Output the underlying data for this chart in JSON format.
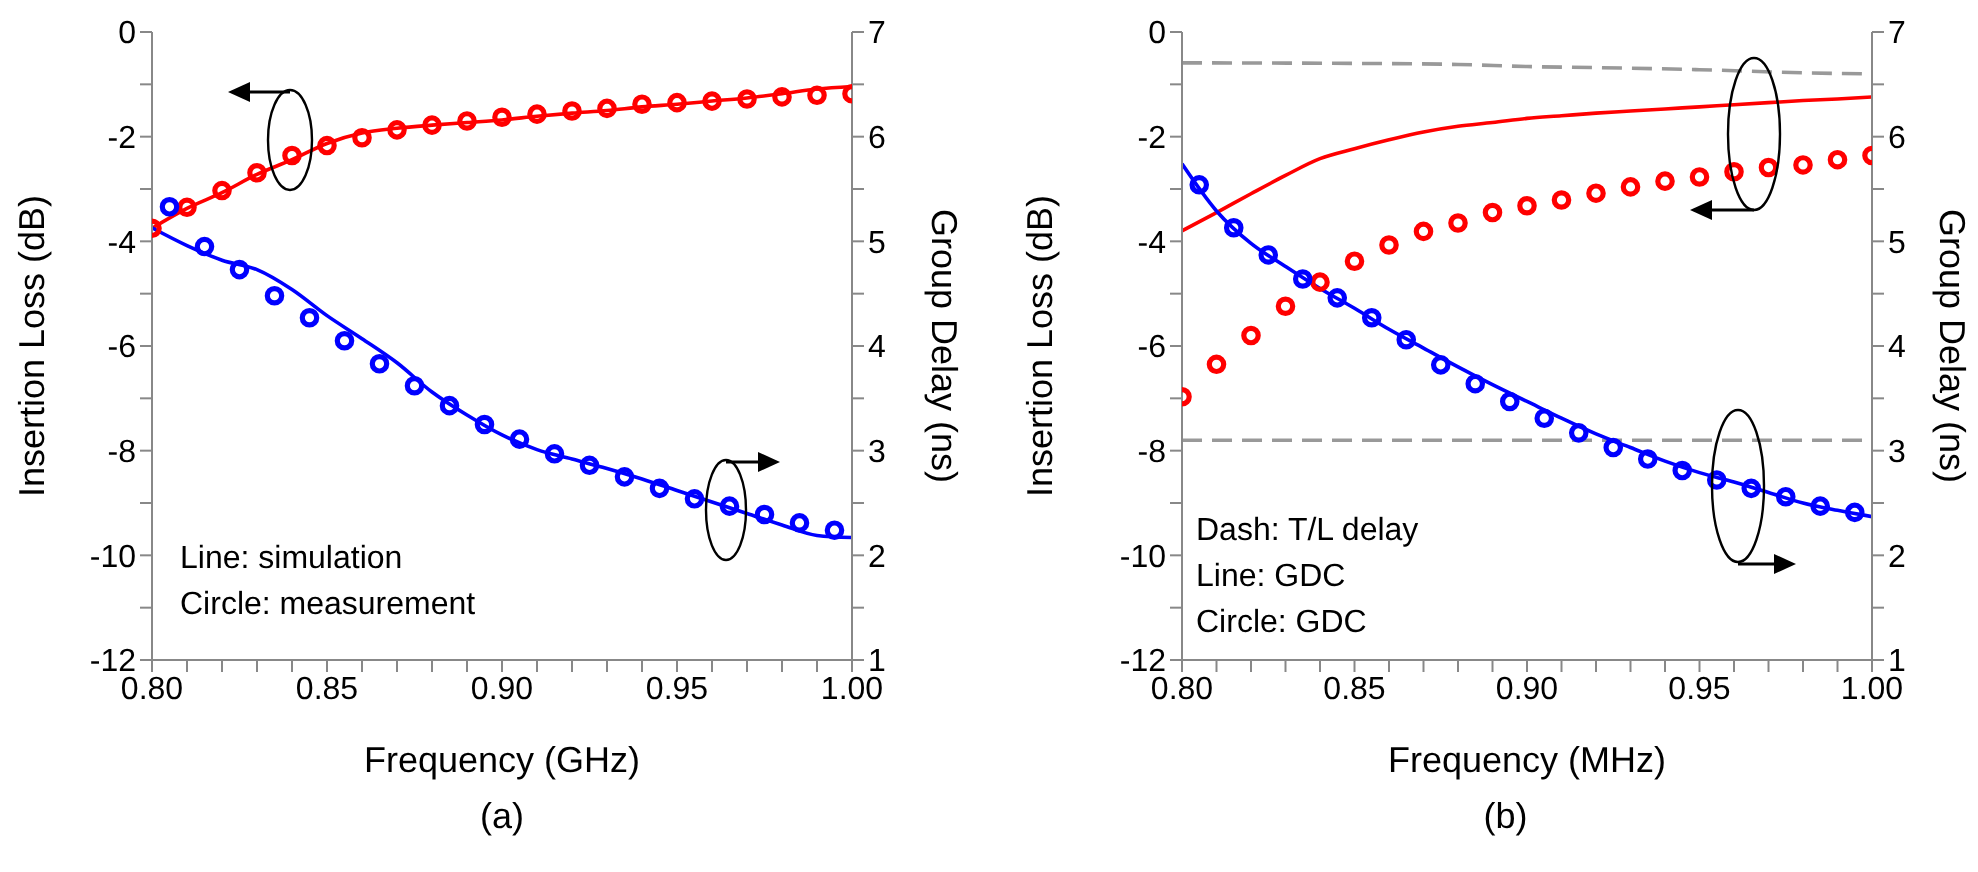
{
  "chart_data": [
    {
      "type": "line",
      "xlabel": "Frequency (GHz)",
      "ylabel": "Insertion Loss (dB)",
      "y2label": "Group Delay (ns)",
      "xlim": [
        0.8,
        1.0
      ],
      "xticks": [
        {
          "value": 0.8,
          "label": "0.80"
        },
        {
          "value": 0.81,
          "label": null
        },
        {
          "value": 0.82,
          "label": null
        },
        {
          "value": 0.83,
          "label": null
        },
        {
          "value": 0.84,
          "label": null
        },
        {
          "value": 0.85,
          "label": "0.85"
        },
        {
          "value": 0.86,
          "label": null
        },
        {
          "value": 0.87,
          "label": null
        },
        {
          "value": 0.88,
          "label": null
        },
        {
          "value": 0.89,
          "label": null
        },
        {
          "value": 0.9,
          "label": "0.90"
        },
        {
          "value": 0.91,
          "label": null
        },
        {
          "value": 0.92,
          "label": null
        },
        {
          "value": 0.93,
          "label": null
        },
        {
          "value": 0.94,
          "label": null
        },
        {
          "value": 0.95,
          "label": "0.95"
        },
        {
          "value": 0.96,
          "label": null
        },
        {
          "value": 0.97,
          "label": null
        },
        {
          "value": 0.98,
          "label": null
        },
        {
          "value": 0.99,
          "label": null
        },
        {
          "value": 1.0,
          "label": "1.00"
        }
      ],
      "ylim": [
        -12,
        0
      ],
      "yticks": [
        -12,
        {
          "value": -11,
          "label": null
        },
        -10,
        {
          "value": -9,
          "label": null
        },
        -8,
        {
          "value": -7,
          "label": null
        },
        -6,
        {
          "value": -5,
          "label": null
        },
        -4,
        {
          "value": -3,
          "label": null
        },
        -2,
        {
          "value": -1,
          "label": null
        },
        0
      ],
      "y2lim": [
        1,
        7
      ],
      "y2ticks": [
        1,
        {
          "value": 1.5,
          "label": null
        },
        2,
        {
          "value": 2.5,
          "label": null
        },
        3,
        {
          "value": 3.5,
          "label": null
        },
        4,
        {
          "value": 4.5,
          "label": null
        },
        5,
        {
          "value": 5.5,
          "label": null
        },
        6,
        {
          "value": 6.5,
          "label": null
        },
        7
      ],
      "series": [
        {
          "type": "line",
          "line_style": "solid",
          "color": "#ff0000",
          "x": [
            0.8,
            0.81,
            0.82,
            0.83,
            0.84,
            0.85,
            0.86,
            0.87,
            0.88,
            0.89,
            0.9,
            0.91,
            0.92,
            0.93,
            0.94,
            0.95,
            0.96,
            0.97,
            0.98,
            0.99,
            1.0
          ],
          "values": [
            -3.75,
            -3.37,
            -3.07,
            -2.72,
            -2.44,
            -2.13,
            -1.93,
            -1.84,
            -1.78,
            -1.73,
            -1.68,
            -1.61,
            -1.55,
            -1.5,
            -1.43,
            -1.38,
            -1.32,
            -1.26,
            -1.18,
            -1.09,
            -1.04
          ]
        },
        {
          "type": "scatter",
          "marker": "circle",
          "color": "#ff0000",
          "x": [
            0.8,
            0.81,
            0.82,
            0.83,
            0.84,
            0.85,
            0.86,
            0.87,
            0.88,
            0.89,
            0.9,
            0.91,
            0.92,
            0.93,
            0.94,
            0.95,
            0.96,
            0.97,
            0.98,
            0.99,
            1.0
          ],
          "values": [
            -3.75,
            -3.35,
            -3.03,
            -2.69,
            -2.36,
            -2.17,
            -2.02,
            -1.87,
            -1.78,
            -1.7,
            -1.63,
            -1.57,
            -1.51,
            -1.46,
            -1.38,
            -1.35,
            -1.32,
            -1.28,
            -1.24,
            -1.21,
            -1.18
          ]
        },
        {
          "type": "line",
          "axis": "y2",
          "line_style": "solid",
          "color": "#0000ff",
          "x": [
            0.8,
            0.81,
            0.82,
            0.83,
            0.84,
            0.85,
            0.86,
            0.87,
            0.88,
            0.89,
            0.9,
            0.91,
            0.92,
            0.93,
            0.94,
            0.95,
            0.96,
            0.97,
            0.98,
            0.99,
            1.0
          ],
          "values": [
            5.13,
            4.96,
            4.82,
            4.73,
            4.54,
            4.29,
            4.07,
            3.84,
            3.56,
            3.34,
            3.15,
            3.01,
            2.92,
            2.83,
            2.73,
            2.62,
            2.51,
            2.4,
            2.29,
            2.19,
            2.17
          ]
        },
        {
          "type": "scatter",
          "axis": "y2",
          "marker": "circle",
          "color": "#0000ff",
          "x": [
            0.805,
            0.815,
            0.825,
            0.835,
            0.845,
            0.855,
            0.865,
            0.875,
            0.885,
            0.895,
            0.905,
            0.915,
            0.925,
            0.935,
            0.945,
            0.955,
            0.965,
            0.975,
            0.985,
            0.995
          ],
          "values": [
            5.33,
            4.95,
            4.73,
            4.48,
            4.27,
            4.05,
            3.83,
            3.62,
            3.43,
            3.25,
            3.11,
            2.97,
            2.86,
            2.75,
            2.64,
            2.54,
            2.47,
            2.39,
            2.31,
            2.24
          ]
        }
      ],
      "annotations": [
        "Line: simulation",
        "Circle: measurement",
        "(a)"
      ]
    },
    {
      "type": "line",
      "xlabel": "Frequency (MHz)",
      "ylabel": "Insertion Loss (dB)",
      "y2label": "Group Delay (ns)",
      "xlim": [
        0.8,
        1.0
      ],
      "xticks": [
        {
          "value": 0.8,
          "label": "0.80"
        },
        {
          "value": 0.81,
          "label": null
        },
        {
          "value": 0.82,
          "label": null
        },
        {
          "value": 0.83,
          "label": null
        },
        {
          "value": 0.84,
          "label": null
        },
        {
          "value": 0.85,
          "label": "0.85"
        },
        {
          "value": 0.86,
          "label": null
        },
        {
          "value": 0.87,
          "label": null
        },
        {
          "value": 0.88,
          "label": null
        },
        {
          "value": 0.89,
          "label": null
        },
        {
          "value": 0.9,
          "label": "0.90"
        },
        {
          "value": 0.91,
          "label": null
        },
        {
          "value": 0.92,
          "label": null
        },
        {
          "value": 0.93,
          "label": null
        },
        {
          "value": 0.94,
          "label": null
        },
        {
          "value": 0.95,
          "label": "0.95"
        },
        {
          "value": 0.96,
          "label": null
        },
        {
          "value": 0.97,
          "label": null
        },
        {
          "value": 0.98,
          "label": null
        },
        {
          "value": 0.99,
          "label": null
        },
        {
          "value": 1.0,
          "label": "1.00"
        }
      ],
      "ylim": [
        -12,
        0
      ],
      "yticks": [
        -12,
        {
          "value": -11,
          "label": null
        },
        -10,
        {
          "value": -9,
          "label": null
        },
        -8,
        {
          "value": -7,
          "label": null
        },
        -6,
        {
          "value": -5,
          "label": null
        },
        -4,
        {
          "value": -3,
          "label": null
        },
        -2,
        {
          "value": -1,
          "label": null
        },
        0
      ],
      "y2lim": [
        1,
        7
      ],
      "y2ticks": [
        1,
        {
          "value": 1.5,
          "label": null
        },
        2,
        {
          "value": 2.5,
          "label": null
        },
        3,
        {
          "value": 3.5,
          "label": null
        },
        4,
        {
          "value": 4.5,
          "label": null
        },
        5,
        {
          "value": 5.5,
          "label": null
        },
        6,
        {
          "value": 6.5,
          "label": null
        },
        7
      ],
      "series": [
        {
          "type": "line",
          "line_style": "dashed",
          "color": "#999999",
          "x": [
            0.8,
            0.85,
            0.88,
            0.9,
            0.92,
            0.95,
            0.98,
            1.0
          ],
          "values": [
            -0.59,
            -0.6,
            -0.62,
            -0.66,
            -0.68,
            -0.72,
            -0.78,
            -0.8
          ]
        },
        {
          "type": "line",
          "axis": "y2",
          "line_style": "dashed",
          "color": "#999999",
          "x": [
            0.8,
            0.9,
            1.0
          ],
          "values": [
            3.1,
            3.1,
            3.1
          ]
        },
        {
          "type": "line",
          "line_style": "solid",
          "color": "#ff0000",
          "x": [
            0.8,
            0.81,
            0.82,
            0.83,
            0.84,
            0.85,
            0.86,
            0.87,
            0.88,
            0.89,
            0.9,
            0.91,
            0.92,
            0.93,
            0.94,
            0.95,
            0.96,
            0.97,
            0.98,
            0.99,
            1.0
          ],
          "values": [
            -3.8,
            -3.45,
            -3.09,
            -2.74,
            -2.42,
            -2.23,
            -2.06,
            -1.91,
            -1.8,
            -1.73,
            -1.65,
            -1.6,
            -1.55,
            -1.51,
            -1.47,
            -1.43,
            -1.39,
            -1.35,
            -1.31,
            -1.28,
            -1.24
          ]
        },
        {
          "type": "scatter",
          "marker": "circle",
          "color": "#ff0000",
          "x": [
            0.8,
            0.81,
            0.82,
            0.83,
            0.84,
            0.85,
            0.86,
            0.87,
            0.88,
            0.89,
            0.9,
            0.91,
            0.92,
            0.93,
            0.94,
            0.95,
            0.96,
            0.97,
            0.98,
            0.99,
            1.0
          ],
          "values": [
            -6.97,
            -6.35,
            -5.8,
            -5.24,
            -4.78,
            -4.38,
            -4.07,
            -3.81,
            -3.65,
            -3.45,
            -3.32,
            -3.21,
            -3.08,
            -2.96,
            -2.85,
            -2.77,
            -2.67,
            -2.59,
            -2.54,
            -2.44,
            -2.36
          ]
        },
        {
          "type": "line",
          "axis": "y2",
          "line_style": "solid",
          "color": "#0000ff",
          "x": [
            0.8,
            0.81,
            0.82,
            0.83,
            0.84,
            0.85,
            0.86,
            0.87,
            0.88,
            0.89,
            0.9,
            0.91,
            0.92,
            0.93,
            0.94,
            0.95,
            0.96,
            0.97,
            0.98,
            0.99,
            1.0
          ],
          "values": [
            5.74,
            5.29,
            4.98,
            4.76,
            4.55,
            4.36,
            4.16,
            3.98,
            3.8,
            3.63,
            3.47,
            3.31,
            3.16,
            3.03,
            2.9,
            2.79,
            2.7,
            2.6,
            2.5,
            2.43,
            2.37
          ]
        },
        {
          "type": "scatter",
          "axis": "y2",
          "marker": "circle",
          "color": "#0000ff",
          "x": [
            0.805,
            0.815,
            0.825,
            0.835,
            0.845,
            0.855,
            0.865,
            0.875,
            0.885,
            0.895,
            0.905,
            0.915,
            0.925,
            0.935,
            0.945,
            0.955,
            0.965,
            0.975,
            0.985,
            0.995
          ],
          "values": [
            5.54,
            5.13,
            4.87,
            4.64,
            4.46,
            4.27,
            4.06,
            3.82,
            3.64,
            3.47,
            3.31,
            3.17,
            3.03,
            2.92,
            2.81,
            2.72,
            2.64,
            2.56,
            2.47,
            2.41
          ]
        }
      ],
      "annotations": [
        "Dash: T/L delay",
        "Line: GDC",
        "Circle: GDC",
        "(b)"
      ]
    }
  ]
}
